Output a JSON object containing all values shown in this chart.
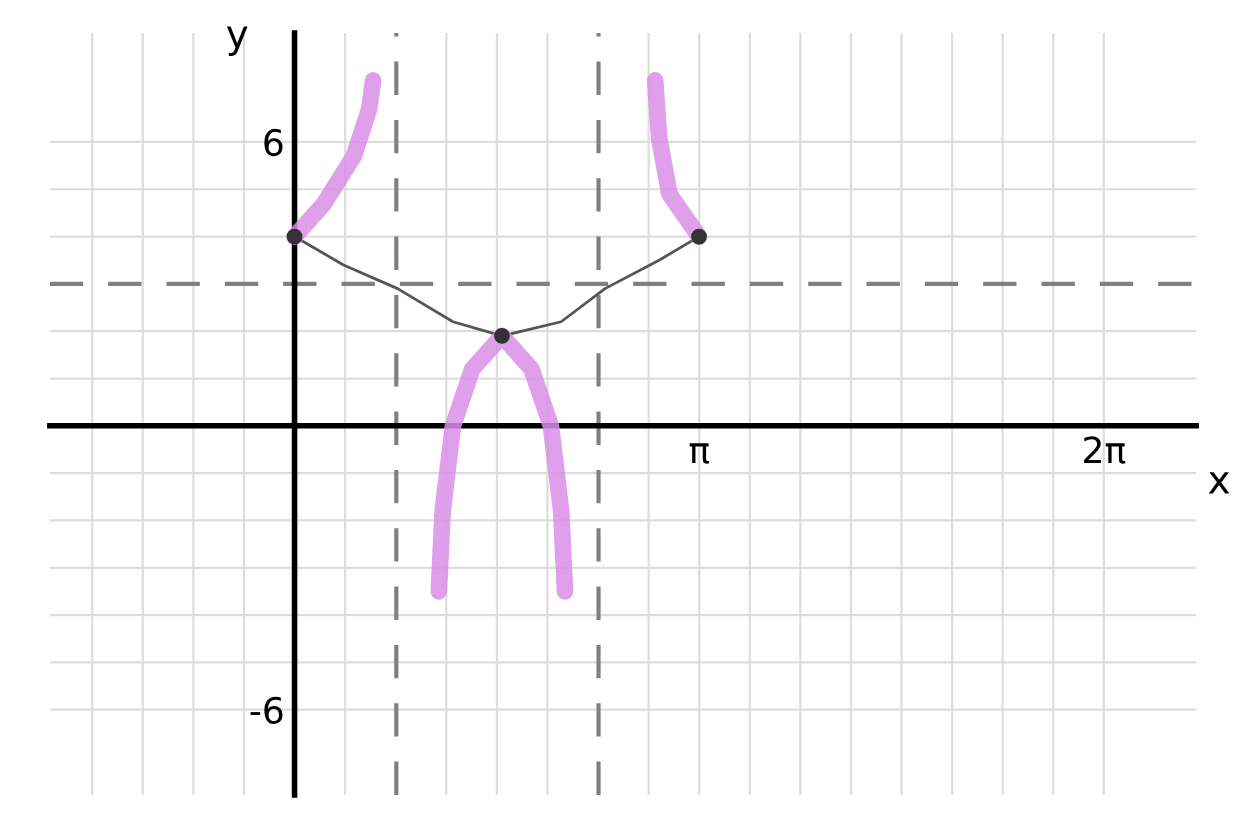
{
  "chart_data": {
    "type": "line",
    "xlabel": "x",
    "ylabel": "y",
    "xlim": [
      -1.9,
      7.0
    ],
    "ylim": [
      -7.8,
      8.3
    ],
    "xticks": [
      {
        "value": -1.5708,
        "label": null
      },
      {
        "value": -1.1781,
        "label": null
      },
      {
        "value": -0.7854,
        "label": null
      },
      {
        "value": -0.3927,
        "label": null
      },
      {
        "value": 0.3927,
        "label": null
      },
      {
        "value": 1.1781,
        "label": null
      },
      {
        "value": 1.5708,
        "label": null
      },
      {
        "value": 1.9635,
        "label": null
      },
      {
        "value": 2.7489,
        "label": null
      },
      {
        "value": 3.1416,
        "label": "π"
      },
      {
        "value": 3.5343,
        "label": null
      },
      {
        "value": 3.927,
        "label": null
      },
      {
        "value": 4.3197,
        "label": null
      },
      {
        "value": 4.7124,
        "label": null
      },
      {
        "value": 5.1051,
        "label": null
      },
      {
        "value": 5.4978,
        "label": null
      },
      {
        "value": 5.8905,
        "label": null
      },
      {
        "value": 6.2832,
        "label": "2π"
      }
    ],
    "yticks": [
      {
        "value": -6,
        "label": "-6"
      },
      {
        "value": -5,
        "label": null
      },
      {
        "value": -4,
        "label": null
      },
      {
        "value": -3,
        "label": null
      },
      {
        "value": -2,
        "label": null
      },
      {
        "value": -1,
        "label": null
      },
      {
        "value": 1,
        "label": null
      },
      {
        "value": 2,
        "label": null
      },
      {
        "value": 4,
        "label": null
      },
      {
        "value": 5,
        "label": null
      },
      6
    ],
    "grid": true,
    "ref_lines": [
      {
        "axis": "y",
        "value": 3,
        "color": "#808080",
        "line_style": "dashed"
      },
      {
        "axis": "x",
        "value": 0.79,
        "color": "#808080",
        "line_style": "dashed"
      },
      {
        "axis": "x",
        "value": 2.36,
        "color": "#808080",
        "line_style": "dashed"
      }
    ],
    "series": [
      {
        "color": "#555555",
        "x": [
          0,
          0.38,
          0.8,
          1.23,
          1.61,
          2.07,
          2.41,
          2.83,
          3.14
        ],
        "values": [
          4,
          3.4,
          2.9,
          2.2,
          1.9,
          2.2,
          2.9,
          3.5,
          4
        ]
      },
      {
        "type": "scatter",
        "color": "#333333",
        "marker": "circle",
        "x": [
          0,
          1.61,
          3.14
        ],
        "values": [
          4,
          1.9,
          4
        ]
      },
      {
        "color": "#d98ee8",
        "x": [
          0,
          0.23,
          0.46,
          0.58,
          0.61
        ],
        "values": [
          4,
          4.7,
          5.7,
          6.7,
          7.3
        ]
      },
      {
        "color": "#d98ee8",
        "x": [
          3.14,
          2.91,
          2.83,
          2.8
        ],
        "values": [
          4,
          4.9,
          6.1,
          7.3
        ]
      },
      {
        "color": "#d98ee8",
        "x": [
          1.12,
          1.15,
          1.23,
          1.38,
          1.61,
          1.84,
          1.99,
          2.07,
          2.1
        ],
        "values": [
          -3.5,
          -1.8,
          0,
          1.2,
          1.9,
          1.2,
          0,
          -1.8,
          -3.5
        ]
      }
    ]
  }
}
